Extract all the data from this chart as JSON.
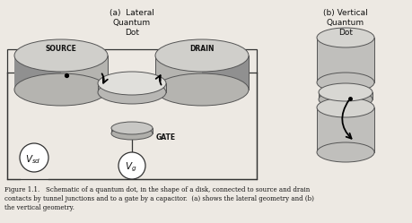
{
  "title_a": "(a)  Lateral\nQuantum\nDot",
  "title_b": "(b) Vertical\nQuantum\nDot",
  "label_source": "SOURCE",
  "label_drain": "DRAIN",
  "label_gate": "GATE",
  "caption_line1": "Figure 1.1.   Schematic of a quantum dot, in the shape of a disk, connected to source and drain",
  "caption_line2": "contacts by tunnel junctions and to a gate by a capacitor.  (a) shows the lateral geometry and (b)",
  "caption_line3": "the vertical geometry.",
  "bg_color": "#ede9e3",
  "cyl_face": "#c0bfbc",
  "cyl_top": "#d8d7d3",
  "cyl_edge": "#555555",
  "dot_face": "#b8b7b3",
  "dot_top": "#d0cfcb",
  "gate_face": "#b0afab",
  "gate_top": "#ccccca"
}
